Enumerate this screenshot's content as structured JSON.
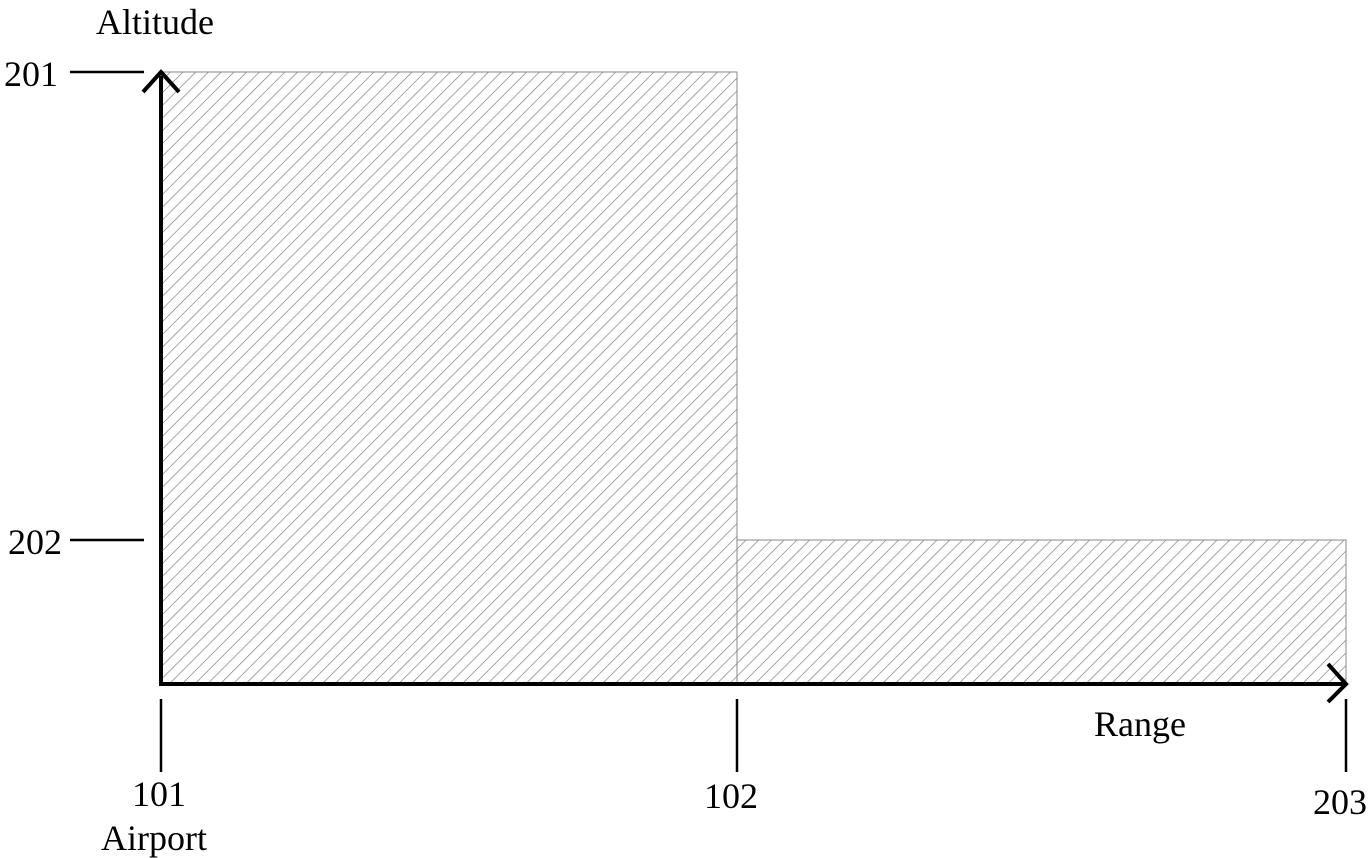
{
  "axes": {
    "y_label": "Altitude",
    "x_label": "Range"
  },
  "y_markers": [
    {
      "label": "201"
    },
    {
      "label": "202"
    }
  ],
  "x_markers": [
    {
      "label": "101",
      "sublabel": "Airport"
    },
    {
      "label": "102"
    },
    {
      "label": "203"
    }
  ],
  "style": {
    "line_color": "#000000",
    "hatch_color": "#666666"
  }
}
